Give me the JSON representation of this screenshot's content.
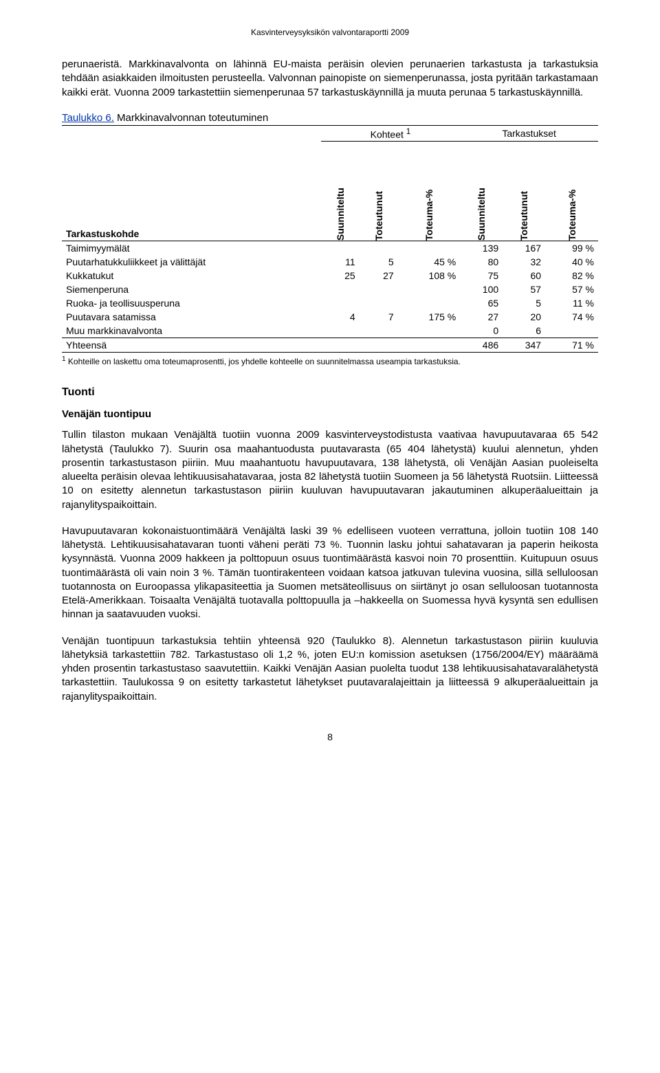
{
  "header": "Kasvinterveysyksikön valvontaraportti 2009",
  "intro_paragraph": "perunaeristä. Markkinavalvonta on lähinnä EU-maista peräisin olevien perunaerien tarkastusta ja tarkastuksia tehdään asiakkaiden ilmoitusten perusteella. Valvonnan painopiste on siemenperunassa, josta pyritään tarkastamaan kaikki erät. Vuonna 2009 tarkastettiin siemenperunaa 57 tarkastuskäynnillä ja muuta perunaa 5 tarkastuskäynnillä.",
  "table6": {
    "caption_prefix": "Taulukko 6.",
    "caption_rest": " Markkinavalvonnan toteutuminen",
    "group_left": "Kohteet",
    "group_left_sup": "1",
    "group_right": "Tarkastukset",
    "col_rowhead": "Tarkastuskohde",
    "cols": [
      "Suunniteltu",
      "Toteutunut",
      "Toteuma-%",
      "Suunniteltu",
      "Toteutunut",
      "Toteuma-%"
    ],
    "rows": [
      {
        "label": "Taimimyymälät",
        "c": [
          "",
          "",
          "",
          "139",
          "167",
          "99 %"
        ]
      },
      {
        "label": "Puutarhatukkuliikkeet ja välittäjät",
        "c": [
          "11",
          "5",
          "45 %",
          "80",
          "32",
          "40 %"
        ]
      },
      {
        "label": "Kukkatukut",
        "c": [
          "25",
          "27",
          "108 %",
          "75",
          "60",
          "82 %"
        ]
      },
      {
        "label": "Siemenperuna",
        "c": [
          "",
          "",
          "",
          "100",
          "57",
          "57 %"
        ]
      },
      {
        "label": "Ruoka- ja teollisuusperuna",
        "c": [
          "",
          "",
          "",
          "65",
          "5",
          "11 %"
        ]
      },
      {
        "label": "Puutavara satamissa",
        "c": [
          "4",
          "7",
          "175 %",
          "27",
          "20",
          "74 %"
        ]
      },
      {
        "label": "Muu markkinavalvonta",
        "c": [
          "",
          "",
          "",
          "0",
          "6",
          ""
        ]
      }
    ],
    "totals": {
      "label": "Yhteensä",
      "c": [
        "",
        "",
        "",
        "486",
        "347",
        "71 %"
      ]
    },
    "footnote_sup": "1",
    "footnote": " Kohteille on laskettu oma toteumaprosentti, jos yhdelle kohteelle on suunnitelmassa useampia tarkastuksia."
  },
  "section_tuonti": "Tuonti",
  "sub_venajan": "Venäjän tuontipuu",
  "para1": "Tullin tilaston mukaan Venäjältä tuotiin vuonna 2009 kasvinterveystodistusta vaativaa havupuutavaraa 65 542 lähetystä (Taulukko 7). Suurin osa maahantuodusta puutavarasta (65 404 lähetystä) kuului alennetun, yhden prosentin tarkastustason piiriin. Muu maahantuotu havupuutavara, 138 lähetystä, oli Venäjän Aasian puoleiselta alueelta peräisin olevaa lehtikuusisahatavaraa, josta 82 lähetystä tuotiin Suomeen ja 56 lähetystä Ruotsiin. Liitteessä 10 on esitetty alennetun tarkastustason piiriin kuuluvan havupuutavaran jakautuminen alkuperäalueittain ja rajanylityspaikoittain.",
  "para2": "Havupuutavaran kokonaistuontimäärä Venäjältä laski 39 % edelliseen vuoteen verrattuna, jolloin tuotiin 108 140 lähetystä. Lehtikuusisahatavaran tuonti väheni peräti 73 %. Tuonnin lasku johtui sahatavaran ja paperin heikosta kysynnästä. Vuonna 2009 hakkeen ja polttopuun osuus tuontimäärästä kasvoi noin 70 prosenttiin. Kuitupuun osuus tuontimäärästä oli vain noin 3 %. Tämän tuontirakenteen voidaan katsoa jatkuvan tulevina vuosina, sillä selluloosan tuotannosta on Euroopassa ylikapasiteettia ja Suomen metsäteollisuus on siirtänyt jo osan selluloosan tuotannosta Etelä-Amerikkaan. Toisaalta Venäjältä tuotavalla polttopuulla ja –hakkeella on Suomessa hyvä kysyntä sen edullisen hinnan ja saatavuuden vuoksi.",
  "para3": "Venäjän tuontipuun tarkastuksia tehtiin yhteensä 920 (Taulukko 8). Alennetun tarkastustason piiriin kuuluvia lähetyksiä tarkastettiin 782. Tarkastustaso oli 1,2 %, joten EU:n komission asetuksen (1756/2004/EY) määräämä yhden prosentin tarkastustaso saavutettiin. Kaikki Venäjän Aasian puolelta tuodut 138 lehtikuusisahatavaralähetystä tarkastettiin. Taulukossa 9 on esitetty tarkastetut lähetykset puutavaralajeittain ja liitteessä 9 alkuperäalueittain ja rajanylityspaikoittain.",
  "page_number": "8"
}
